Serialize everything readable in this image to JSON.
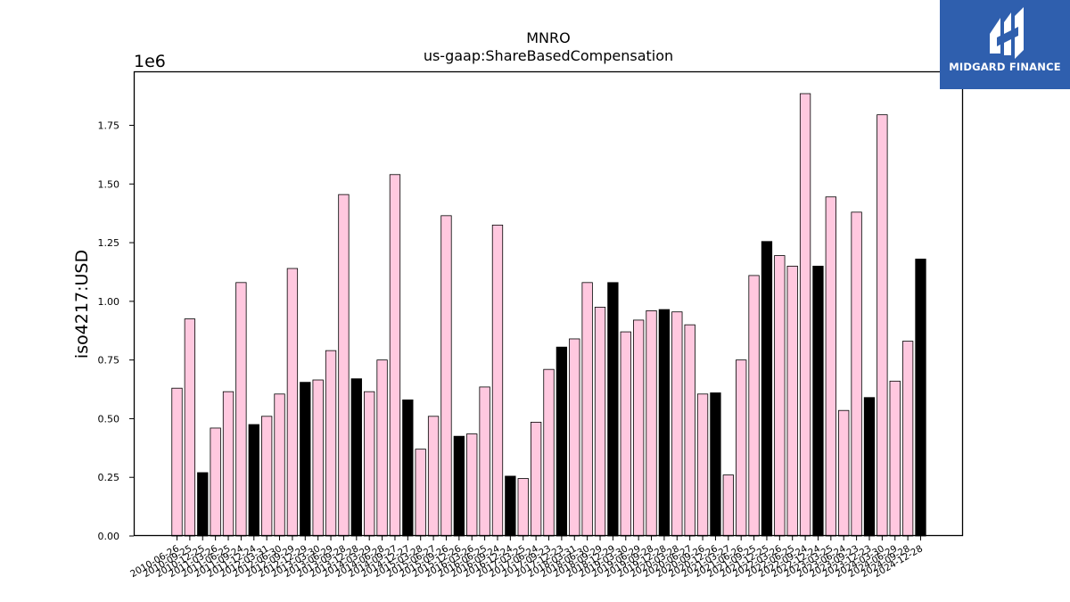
{
  "logo": {
    "text": "MIDGARD FINANCE",
    "icon": "midgard-finance-logo-icon",
    "bg_color": "#2f5fae"
  },
  "chart_data": {
    "type": "bar",
    "title": "MNRO",
    "subtitle": "us-gaap:ShareBasedCompensation",
    "xlabel": "",
    "ylabel": "iso4217:USD",
    "y_multiplier_label": "1e6",
    "ylim": [
      0,
      1.98
    ],
    "yticks": [
      "0.00",
      "0.25",
      "0.50",
      "0.75",
      "1.00",
      "1.25",
      "1.50",
      "1.75"
    ],
    "grid": false,
    "colors": {
      "pink": "#ffc8df",
      "black": "#000000",
      "edge": "#000000"
    },
    "bars": [
      {
        "value": 0.63,
        "color": "pink"
      },
      {
        "value": 0.925,
        "color": "pink"
      },
      {
        "value": 0.27,
        "color": "black"
      },
      {
        "value": 0.46,
        "color": "pink"
      },
      {
        "value": 0.615,
        "color": "pink"
      },
      {
        "value": 1.08,
        "color": "pink"
      },
      {
        "value": 0.475,
        "color": "black"
      },
      {
        "value": 0.51,
        "color": "pink"
      },
      {
        "value": 0.605,
        "color": "pink"
      },
      {
        "value": 1.14,
        "color": "pink"
      },
      {
        "value": 0.655,
        "color": "black"
      },
      {
        "value": 0.665,
        "color": "pink"
      },
      {
        "value": 0.79,
        "color": "pink"
      },
      {
        "value": 1.455,
        "color": "pink"
      },
      {
        "value": 0.67,
        "color": "black"
      },
      {
        "value": 0.615,
        "color": "pink"
      },
      {
        "value": 0.75,
        "color": "pink"
      },
      {
        "value": 1.54,
        "color": "pink"
      },
      {
        "value": 0.58,
        "color": "black"
      },
      {
        "value": 0.37,
        "color": "pink"
      },
      {
        "value": 0.51,
        "color": "pink"
      },
      {
        "value": 1.365,
        "color": "pink"
      },
      {
        "value": 0.425,
        "color": "black"
      },
      {
        "value": 0.435,
        "color": "pink"
      },
      {
        "value": 0.635,
        "color": "pink"
      },
      {
        "value": 1.325,
        "color": "pink"
      },
      {
        "value": 0.255,
        "color": "black"
      },
      {
        "value": 0.245,
        "color": "pink"
      },
      {
        "value": 0.485,
        "color": "pink"
      },
      {
        "value": 0.71,
        "color": "pink"
      },
      {
        "value": 0.805,
        "color": "black"
      },
      {
        "value": 0.84,
        "color": "pink"
      },
      {
        "value": 1.08,
        "color": "pink"
      },
      {
        "value": 0.975,
        "color": "pink"
      },
      {
        "value": 1.08,
        "color": "black"
      },
      {
        "value": 0.87,
        "color": "pink"
      },
      {
        "value": 0.92,
        "color": "pink"
      },
      {
        "value": 0.96,
        "color": "pink"
      },
      {
        "value": 0.965,
        "color": "black"
      },
      {
        "value": 0.955,
        "color": "pink"
      },
      {
        "value": 0.9,
        "color": "pink"
      },
      {
        "value": 0.605,
        "color": "pink"
      },
      {
        "value": 0.61,
        "color": "black"
      },
      {
        "value": 0.26,
        "color": "pink"
      },
      {
        "value": 0.75,
        "color": "pink"
      },
      {
        "value": 1.11,
        "color": "pink"
      },
      {
        "value": 1.255,
        "color": "black"
      },
      {
        "value": 1.195,
        "color": "pink"
      },
      {
        "value": 1.15,
        "color": "pink"
      },
      {
        "value": 1.885,
        "color": "pink"
      },
      {
        "value": 1.15,
        "color": "black"
      },
      {
        "value": 1.445,
        "color": "pink"
      },
      {
        "value": 0.535,
        "color": "pink"
      },
      {
        "value": 1.38,
        "color": "pink"
      },
      {
        "value": 0.59,
        "color": "black"
      },
      {
        "value": 1.795,
        "color": "pink"
      },
      {
        "value": 0.66,
        "color": "pink"
      },
      {
        "value": 0.83,
        "color": "pink"
      },
      {
        "value": 1.18,
        "color": "black"
      }
    ],
    "visible_tick_labels": [
      "2010-06-26",
      "2010-09-25",
      "2010-12-25",
      "2011-03-26",
      "2011-06-25",
      "2011-09-24",
      "2011-12-24",
      "2012-03-31",
      "2012-06-30",
      "2012-09-29",
      "2012-12-29",
      "2013-03-30",
      "2013-06-29",
      "2013-09-28",
      "2013-12-28",
      "2014-03-29",
      "2014-06-28",
      "2014-09-27",
      "2014-12-27",
      "2015-03-28",
      "2015-06-27",
      "2015-09-26",
      "2015-12-26",
      "2016-03-26",
      "2016-06-25",
      "2016-09-24",
      "2016-12-24",
      "2017-03-25",
      "2017-06-24",
      "2017-09-23",
      "2017-12-23",
      "2018-03-31",
      "2018-06-30",
      "2018-09-29",
      "2018-12-29",
      "2019-03-30",
      "2019-06-29",
      "2019-09-28",
      "2019-12-28",
      "2020-03-28",
      "2020-06-27",
      "2020-09-26",
      "2020-12-26",
      "2021-03-27",
      "2021-06-26",
      "2021-09-25",
      "2021-12-25",
      "2022-03-26",
      "2022-06-25",
      "2022-09-24",
      "2022-12-24",
      "2023-03-25",
      "2023-06-24",
      "2023-09-23",
      "2023-12-23",
      "2024-03-30",
      "2024-06-29",
      "2024-09-28",
      "2024-12-28"
    ]
  }
}
